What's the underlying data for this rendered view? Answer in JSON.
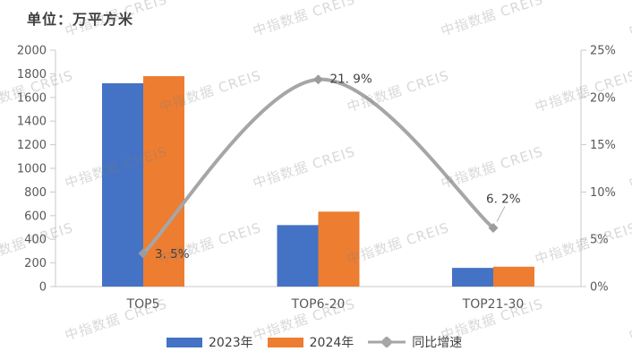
{
  "title": "单位：万平方米",
  "watermark": {
    "text": "中指数据 CREIS"
  },
  "legend": [
    {
      "label": "2023年",
      "color": "#4472C4",
      "type": "swatch"
    },
    {
      "label": "2024年",
      "color": "#ED7D31",
      "type": "swatch"
    },
    {
      "label": "同比增速",
      "color": "#A6A6A6",
      "type": "line"
    }
  ],
  "chart_data": {
    "type": "bar+line",
    "title": "单位：万平方米",
    "categories": [
      "TOP5",
      "TOP6-20",
      "TOP21-30"
    ],
    "series": [
      {
        "name": "2023年",
        "type": "bar",
        "color": "#4472C4",
        "axis": "left",
        "values": [
          1720,
          520,
          158
        ]
      },
      {
        "name": "2024年",
        "type": "bar",
        "color": "#ED7D31",
        "axis": "left",
        "values": [
          1780,
          634,
          168
        ]
      },
      {
        "name": "同比增速",
        "type": "line",
        "color": "#A6A6A6",
        "axis": "right",
        "values": [
          3.5,
          21.9,
          6.2
        ],
        "point_labels": [
          "3. 5%",
          "21. 9%",
          "6. 2%"
        ]
      }
    ],
    "left_axis": {
      "min": 0,
      "max": 2000,
      "step": 200,
      "tick_labels": [
        "0",
        "200",
        "400",
        "600",
        "800",
        "1000",
        "1200",
        "1400",
        "1600",
        "1800",
        "2000"
      ]
    },
    "right_axis": {
      "min": 0,
      "max": 25,
      "step": 5,
      "tick_labels": [
        "0%",
        "5%",
        "10%",
        "15%",
        "20%",
        "25%"
      ]
    },
    "grid": false,
    "legend_position": "bottom",
    "colors": {
      "axis_line": "#c9c9c9",
      "tick_text": "#595959",
      "data_label": "#3f3f3f",
      "line": "#A6A6A6",
      "marker": "#9c9c9c"
    }
  }
}
